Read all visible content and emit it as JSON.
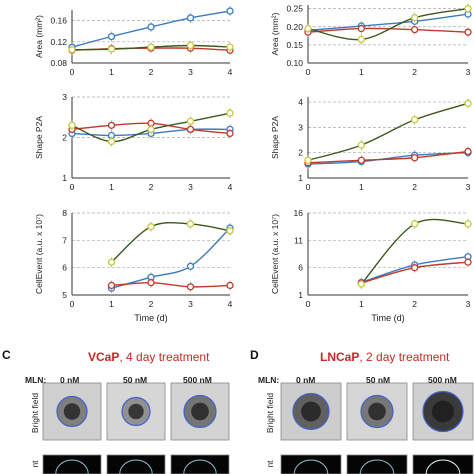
{
  "chart_data": [
    {
      "type": "line",
      "panel": "left-top",
      "ylabel": "Area (mm²)",
      "yticks": [
        "0.08",
        "0.12",
        "0.16"
      ],
      "xticks": [
        "0",
        "1",
        "2",
        "3",
        "4"
      ],
      "ylim": [
        0.08,
        0.18
      ],
      "xlim": [
        0,
        4
      ],
      "grid": "dashed-horizontal",
      "series": [
        {
          "color": "#3a7bbf",
          "x": [
            0,
            1,
            2,
            3,
            4
          ],
          "y": [
            0.11,
            0.13,
            0.148,
            0.165,
            0.178
          ]
        },
        {
          "color": "#c0392b",
          "x": [
            0,
            1,
            2,
            3,
            4
          ],
          "y": [
            0.104,
            0.107,
            0.108,
            0.108,
            0.104
          ]
        },
        {
          "color": "#3d5a1e",
          "x": [
            0,
            1,
            2,
            3,
            4
          ],
          "y": [
            0.105,
            0.106,
            0.11,
            0.113,
            0.11
          ],
          "marker_color": "#c8c83a"
        }
      ]
    },
    {
      "type": "line",
      "panel": "right-top",
      "ylabel": "Area (mm²)",
      "yticks": [
        "0.10",
        "0.15",
        "0.20",
        "0.25"
      ],
      "xticks": [
        "0",
        "1",
        "2",
        "3"
      ],
      "ylim": [
        0.1,
        0.26
      ],
      "xlim": [
        0,
        3
      ],
      "grid": "dashed-horizontal",
      "series": [
        {
          "color": "#3a7bbf",
          "x": [
            0,
            1,
            2,
            3
          ],
          "y": [
            0.19,
            0.202,
            0.215,
            0.235
          ]
        },
        {
          "color": "#c0392b",
          "x": [
            0,
            1,
            2,
            3
          ],
          "y": [
            0.185,
            0.195,
            0.192,
            0.185
          ]
        },
        {
          "color": "#3d5a1e",
          "x": [
            0,
            1,
            2,
            3
          ],
          "y": [
            0.195,
            0.165,
            0.225,
            0.25
          ],
          "marker_color": "#c8c83a"
        }
      ]
    },
    {
      "type": "line",
      "panel": "left-middle",
      "ylabel": "Shape P2A",
      "yticks": [
        "1",
        "2",
        "3"
      ],
      "xticks": [
        "0",
        "1",
        "2",
        "3",
        "4"
      ],
      "ylim": [
        1,
        3
      ],
      "xlim": [
        0,
        4
      ],
      "grid": "dashed-horizontal",
      "series": [
        {
          "color": "#3a7bbf",
          "x": [
            0,
            1,
            2,
            3,
            4
          ],
          "y": [
            2.1,
            2.05,
            2.1,
            2.2,
            2.2
          ]
        },
        {
          "color": "#c0392b",
          "x": [
            0,
            1,
            2,
            3,
            4
          ],
          "y": [
            2.2,
            2.3,
            2.35,
            2.2,
            2.1
          ]
        },
        {
          "color": "#3d5a1e",
          "x": [
            0,
            1,
            2,
            3,
            4
          ],
          "y": [
            2.3,
            1.9,
            2.2,
            2.4,
            2.6
          ],
          "marker_color": "#c8c83a"
        }
      ]
    },
    {
      "type": "line",
      "panel": "right-middle",
      "ylabel": "Shape P2A",
      "yticks": [
        "1",
        "2",
        "3",
        "4"
      ],
      "xticks": [
        "0",
        "1",
        "2",
        "3"
      ],
      "ylim": [
        1,
        4.2
      ],
      "xlim": [
        0,
        3
      ],
      "grid": "dashed-horizontal",
      "series": [
        {
          "color": "#3a7bbf",
          "x": [
            0,
            1,
            2,
            3
          ],
          "y": [
            1.55,
            1.65,
            1.9,
            2.0
          ]
        },
        {
          "color": "#c0392b",
          "x": [
            0,
            1,
            2,
            3
          ],
          "y": [
            1.6,
            1.7,
            1.8,
            2.05
          ]
        },
        {
          "color": "#3d5a1e",
          "x": [
            0,
            1,
            2,
            3
          ],
          "y": [
            1.7,
            2.3,
            3.3,
            3.95
          ],
          "marker_color": "#c8c83a"
        }
      ]
    },
    {
      "type": "line",
      "panel": "left-bottom",
      "ylabel": "CellEvent (a.u. x 10⁷)",
      "xlabel": "Time (d)",
      "yticks": [
        "5",
        "6",
        "7",
        "8"
      ],
      "xticks": [
        "0",
        "1",
        "2",
        "3",
        "4"
      ],
      "ylim": [
        5,
        8
      ],
      "xlim": [
        0,
        4
      ],
      "grid": "dashed-horizontal",
      "series": [
        {
          "color": "#3a7bbf",
          "x": [
            1,
            2,
            3,
            4
          ],
          "y": [
            5.25,
            5.65,
            6.05,
            7.45
          ]
        },
        {
          "color": "#c0392b",
          "x": [
            1,
            2,
            3,
            4
          ],
          "y": [
            5.35,
            5.45,
            5.3,
            5.35
          ]
        },
        {
          "color": "#3d5a1e",
          "x": [
            1,
            2,
            3,
            4
          ],
          "y": [
            6.2,
            7.5,
            7.6,
            7.35
          ],
          "marker_color": "#c8c83a"
        }
      ]
    },
    {
      "type": "line",
      "panel": "right-bottom",
      "ylabel": "CellEvent (a.u. x 10⁷)",
      "xlabel": "Time (d)",
      "yticks": [
        "1",
        "6",
        "11",
        "16"
      ],
      "xticks": [
        "0",
        "1",
        "2",
        "3"
      ],
      "ylim": [
        1,
        16
      ],
      "xlim": [
        0,
        3
      ],
      "grid": "dashed-horizontal",
      "series": [
        {
          "color": "#3a7bbf",
          "x": [
            1,
            2,
            3
          ],
          "y": [
            3.3,
            6.5,
            8.0
          ]
        },
        {
          "color": "#c0392b",
          "x": [
            1,
            2,
            3
          ],
          "y": [
            3.2,
            6.0,
            7.0
          ]
        },
        {
          "color": "#3d5a1e",
          "x": [
            1,
            2,
            3
          ],
          "y": [
            3.0,
            14.0,
            14.0
          ],
          "marker_color": "#c8c83a"
        }
      ]
    }
  ],
  "axis_tick_labels_cut": {
    "right_top_ylabel_fragment": "Area (mm",
    "left_top_ylabel_fragment": "Area (mm",
    "right_bottom_xtick_fragment": "3("
  },
  "panels": {
    "c": {
      "letter": "C",
      "title_cell": "VCaP",
      "title_rest": ", 4 day treatment"
    },
    "d": {
      "letter": "D",
      "title_cell": "LNCaP",
      "title_rest": ", 2 day treatment"
    }
  },
  "image_grid": {
    "mln_label": "MLN:",
    "doses": [
      "0 nM",
      "50 nM",
      "500 nM"
    ],
    "row_labels": [
      "Bright field",
      "nt"
    ]
  },
  "colors": {
    "blue": "#3a7bbf",
    "red": "#c0392b",
    "green": "#3d5a1e",
    "yellow_marker": "#c8c83a",
    "title_red": "#c62828"
  }
}
